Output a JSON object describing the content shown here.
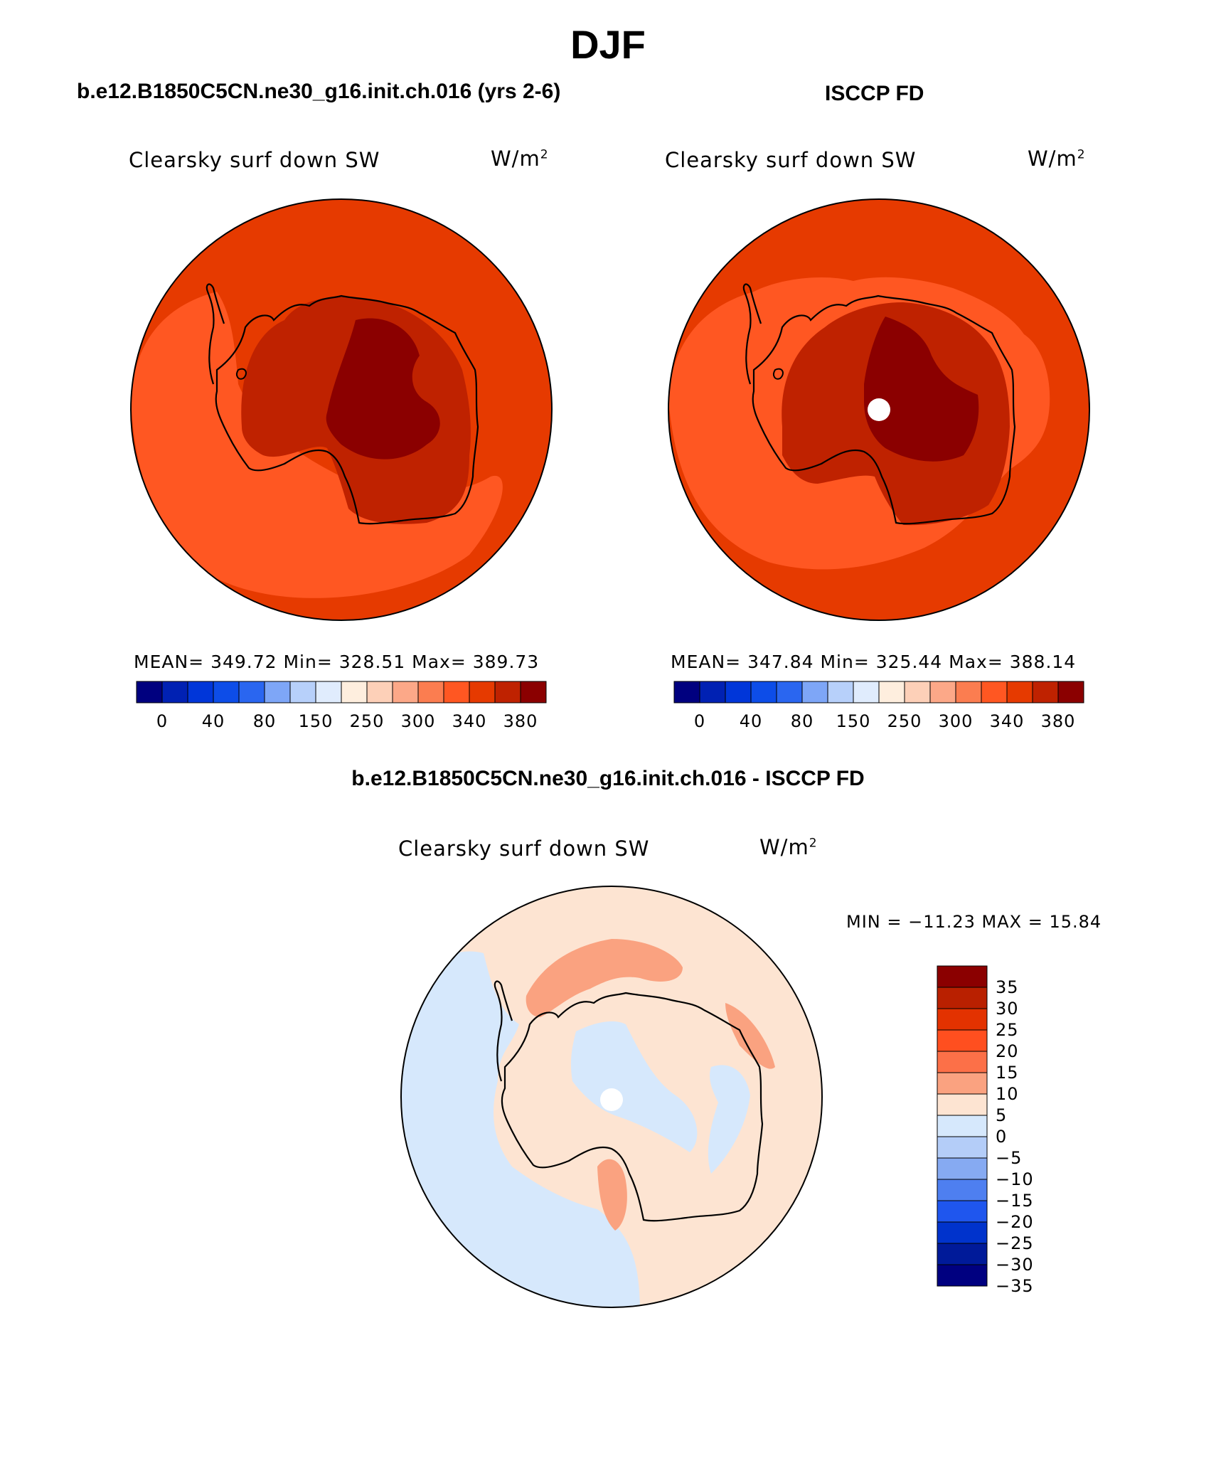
{
  "title": "DJF",
  "panels": [
    {
      "case_title": "b.e12.B1850C5CN.ne30_g16.init.ch.016 (yrs 2-6)",
      "variable": "Clearsky surf down SW",
      "units_base": "W/m",
      "units_sup": "2",
      "stats": "MEAN= 349.72   Min= 328.51   Max= 389.73"
    },
    {
      "case_title": "ISCCP FD",
      "variable": "Clearsky surf down SW",
      "units_base": "W/m",
      "units_sup": "2",
      "stats": "MEAN= 347.84   Min= 325.44   Max= 388.14"
    },
    {
      "case_title": "b.e12.B1850C5CN.ne30_g16.init.ch.016 - ISCCP FD",
      "variable": "Clearsky surf down SW",
      "units_base": "W/m",
      "units_sup": "2",
      "stats": "MIN = −11.23 MAX =   15.84"
    }
  ],
  "abs_colorbar": {
    "colors": [
      "#00007f",
      "#0021b3",
      "#0036d9",
      "#0d4de8",
      "#2a66f0",
      "#7ea6f7",
      "#b7d0fa",
      "#e0ecfd",
      "#feeede",
      "#fdd0b8",
      "#fca888",
      "#fb7d50",
      "#ff5722",
      "#e63a00",
      "#bf2200",
      "#8b0000"
    ],
    "labels": [
      "0",
      "40",
      "80",
      "150",
      "250",
      "300",
      "340",
      "380"
    ]
  },
  "diff_colorbar": {
    "colors": [
      "#8b0000",
      "#b92000",
      "#e33200",
      "#ff4f1f",
      "#fc7048",
      "#faa280",
      "#fde4d2",
      "#d6e8fc",
      "#b4cdf8",
      "#86aaf2",
      "#4e7ff0",
      "#1f56ee",
      "#0033cc",
      "#001a99",
      "#000080"
    ],
    "labels": [
      "35",
      "30",
      "25",
      "20",
      "15",
      "10",
      "5",
      "0",
      "−5",
      "−10",
      "−15",
      "−20",
      "−25",
      "−30",
      "−35"
    ]
  }
}
